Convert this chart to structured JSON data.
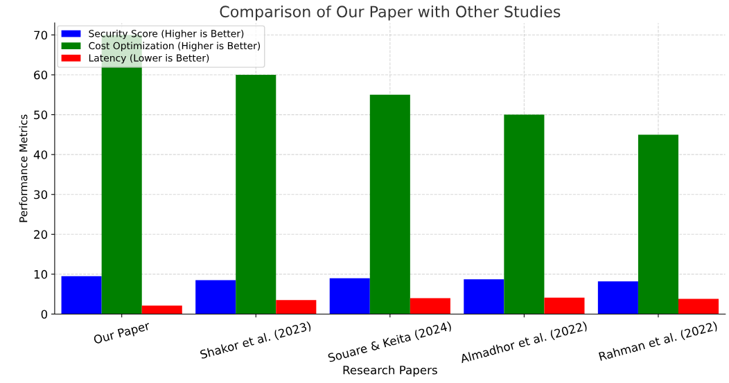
{
  "chart_data": {
    "type": "bar",
    "title": "Comparison of Our Paper with Other Studies",
    "xlabel": "Research Papers",
    "ylabel": "Performance Metrics",
    "categories": [
      "Our Paper",
      "Shakor et al. (2023)",
      "Souare & Keita (2024)",
      "Almadhor et al. (2022)",
      "Rahman et al. (2022)"
    ],
    "series": [
      {
        "name": "Security Score (Higher is Better)",
        "color": "#0000ff",
        "values": [
          9.5,
          8.5,
          9.0,
          8.7,
          8.2
        ]
      },
      {
        "name": "Cost Optimization (Higher is Better)",
        "color": "#008000",
        "values": [
          70,
          60,
          55,
          50,
          45
        ]
      },
      {
        "name": "Latency (Lower is Better)",
        "color": "#ff0000",
        "values": [
          2.1,
          3.5,
          4.0,
          4.1,
          3.8
        ]
      }
    ],
    "ylim": [
      0,
      73
    ],
    "yticks": [
      0,
      10,
      20,
      30,
      40,
      50,
      60,
      70
    ],
    "grid": true,
    "legend": "top left"
  }
}
